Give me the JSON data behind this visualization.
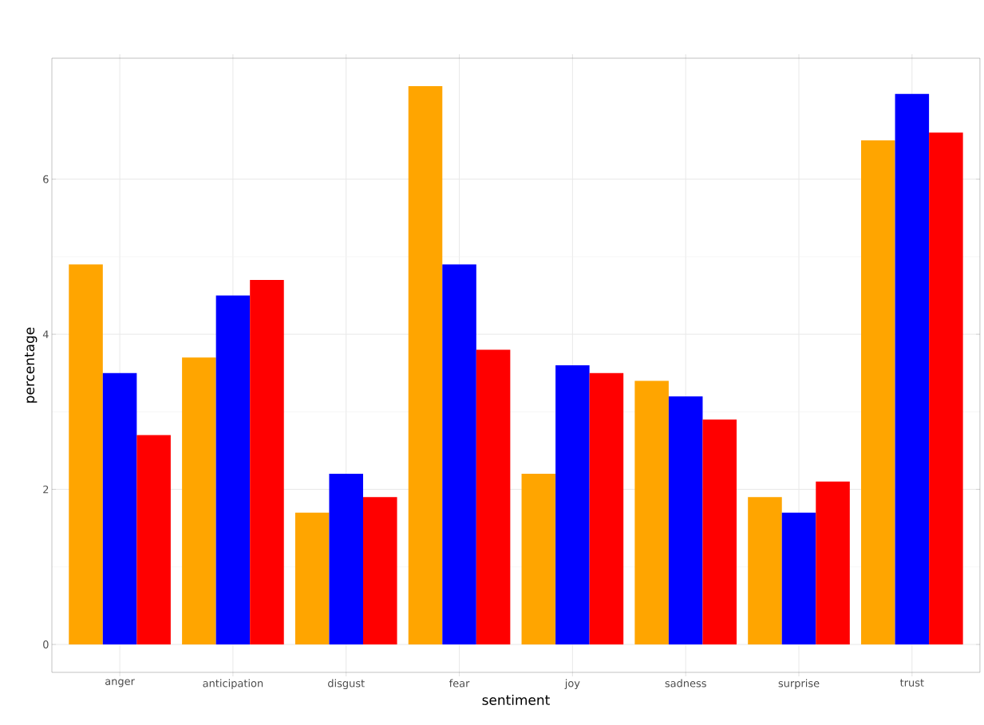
{
  "chart_data": {
    "type": "bar",
    "xlabel": "sentiment",
    "ylabel": "percentage",
    "categories": [
      "anger",
      "anticipation",
      "disgust",
      "fear",
      "joy",
      "sadness",
      "surprise",
      "trust"
    ],
    "series": [
      {
        "color": "#ffa500",
        "values": [
          4.9,
          3.7,
          1.7,
          7.2,
          2.2,
          3.4,
          1.9,
          6.5
        ]
      },
      {
        "color": "#0000ff",
        "values": [
          3.5,
          4.5,
          2.2,
          4.9,
          3.6,
          3.2,
          1.7,
          7.1
        ]
      },
      {
        "color": "#ff0000",
        "values": [
          2.7,
          4.7,
          1.9,
          3.8,
          3.5,
          2.9,
          2.1,
          6.6
        ]
      }
    ],
    "ylim": [
      -0.36,
      7.56
    ],
    "yticks": [
      0,
      2,
      4,
      6
    ],
    "grid": true
  }
}
